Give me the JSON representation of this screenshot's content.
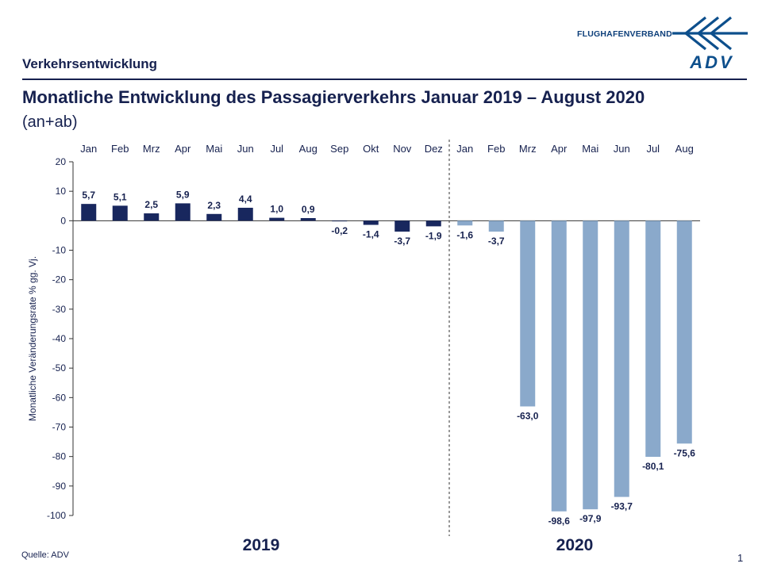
{
  "header": {
    "section": "Verkehrsentwicklung",
    "title": "Monatliche Entwicklung des Passagierverkehrs  Januar 2019 – August 2020",
    "subtitle": "(an+ab)",
    "brand": "FLUGHAFENVERBAND",
    "logo_text": "ADV"
  },
  "footer": {
    "source": "Quelle: ADV",
    "page": "1"
  },
  "colors": {
    "y2019": "#18275e",
    "y2020": "#8aa9cb",
    "text": "#16214f",
    "logo": "#0d4f8c"
  },
  "chart_data": {
    "type": "bar",
    "ylabel": "Monatliche Veränderungsrate % gg. Vj.",
    "xlabel": "",
    "ylim": [
      -100,
      20
    ],
    "yticks": [
      20,
      10,
      0,
      -10,
      -20,
      -30,
      -40,
      -50,
      -60,
      -70,
      -80,
      -90,
      -100
    ],
    "ytick_labels": [
      "20",
      "10",
      "0",
      "-10",
      "-20",
      "-30",
      "-40",
      "-50",
      "-60",
      "-70",
      "-80",
      "-90",
      "-100"
    ],
    "categories": [
      "Jan",
      "Feb",
      "Mrz",
      "Apr",
      "Mai",
      "Jun",
      "Jul",
      "Aug",
      "Sep",
      "Okt",
      "Nov",
      "Dez",
      "Jan",
      "Feb",
      "Mrz",
      "Apr",
      "Mai",
      "Jun",
      "Jul",
      "Aug"
    ],
    "values": [
      5.7,
      5.1,
      2.5,
      5.9,
      2.3,
      4.4,
      1.0,
      0.9,
      -0.2,
      -1.4,
      -3.7,
      -1.9,
      -1.6,
      -3.7,
      -63.0,
      -98.6,
      -97.9,
      -93.7,
      -80.1,
      -75.6
    ],
    "labels": [
      "5,7",
      "5,1",
      "2,5",
      "5,9",
      "2,3",
      "4,4",
      "1,0",
      "0,9",
      "-0,2",
      "-1,4",
      "-3,7",
      "-1,9",
      "-1,6",
      "-3,7",
      "-63,0",
      "-98,6",
      "-97,9",
      "-93,7",
      "-80,1",
      "-75,6"
    ],
    "years": [
      {
        "label": "2019",
        "start": 0,
        "count": 12
      },
      {
        "label": "2020",
        "start": 12,
        "count": 8
      }
    ],
    "grid": false
  }
}
